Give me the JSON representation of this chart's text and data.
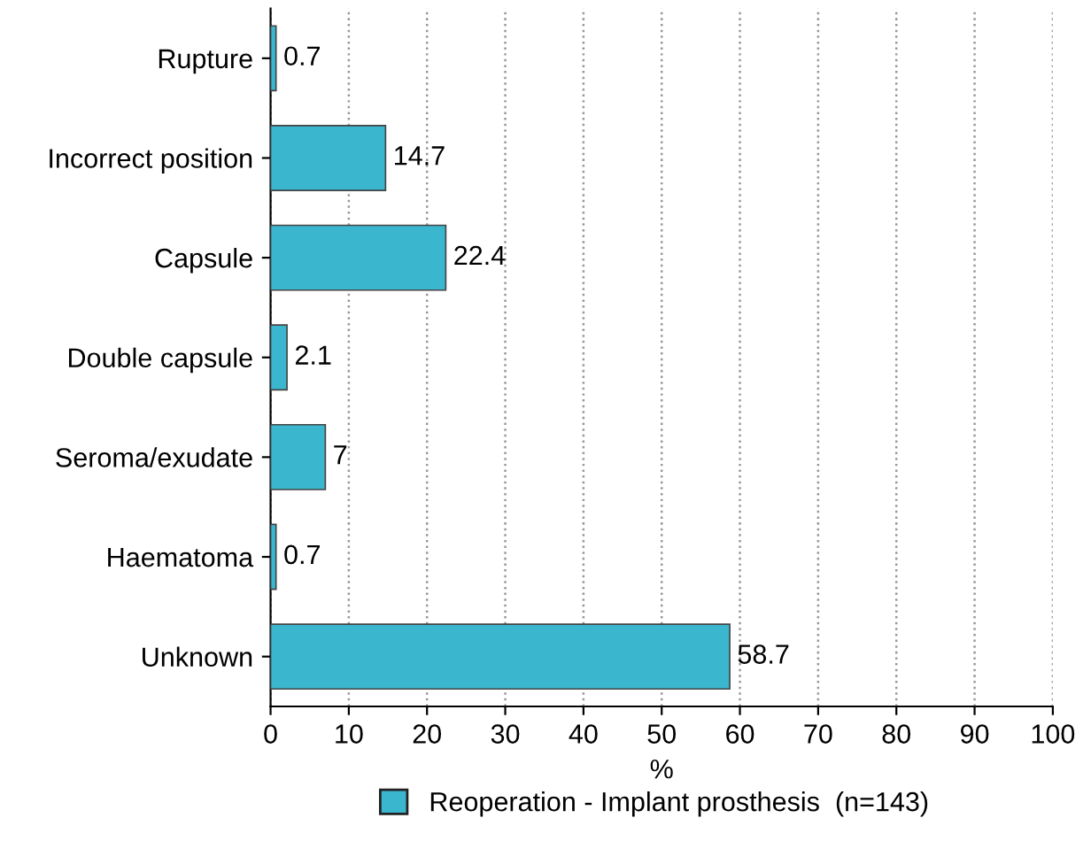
{
  "chart_data": {
    "type": "bar",
    "orientation": "horizontal",
    "xlabel": "%",
    "categories": [
      "Rupture",
      "Incorrect position",
      "Capsule",
      "Double capsule",
      "Seroma/exudate",
      "Haematoma",
      "Unknown"
    ],
    "series": [
      {
        "name": "Reoperation - Implant prosthesis  (n=143)",
        "color": "#3bb6cf",
        "values": [
          0.7,
          14.7,
          22.4,
          2.1,
          7,
          0.7,
          58.7
        ]
      }
    ],
    "xlim": [
      0,
      100
    ],
    "xticks": [
      0,
      10,
      20,
      30,
      40,
      50,
      60,
      70,
      80,
      90,
      100
    ],
    "grid": "x",
    "line_style": "dotted",
    "legend": "bottom",
    "data_labels": true
  }
}
